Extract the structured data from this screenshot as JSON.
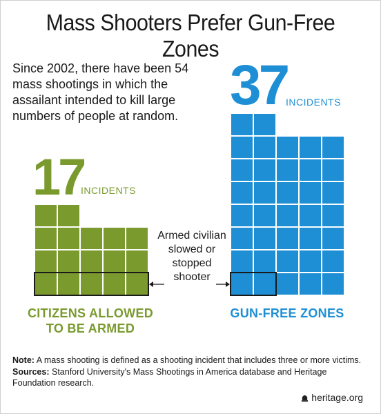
{
  "title": "Mass Shooters Prefer Gun-Free Zones",
  "intro": "Since 2002, there have been 54 mass shootings in which the assailant intended to kill large numbers of people at random.",
  "callout": "Armed civilian slowed or stopped shooter",
  "footnote": {
    "note_label": "Note:",
    "note_text": "A mass shooting is defined as a shooting incident that includes three or more victims.",
    "sources_label": "Sources:",
    "sources_text": "Stanford University's Mass Shootings in America database and Heritage Foundation research."
  },
  "brand": "heritage.org",
  "brand_icon": "bell-icon",
  "colors": {
    "green": "#7a9a2e",
    "blue": "#1e8fd4",
    "text": "#1a1a1a"
  },
  "chart_data": {
    "type": "waffle",
    "unit": "incidents",
    "categories": [
      "CITIZENS ALLOWED TO BE ARMED",
      "GUN-FREE ZONES"
    ],
    "values": [
      17,
      37
    ],
    "value_labels": [
      "17",
      "37"
    ],
    "unit_label": "INCIDENTS",
    "highlighted_label": "Armed civilian slowed or stopped shooter",
    "highlighted_counts": [
      5,
      2
    ],
    "total": 54
  }
}
